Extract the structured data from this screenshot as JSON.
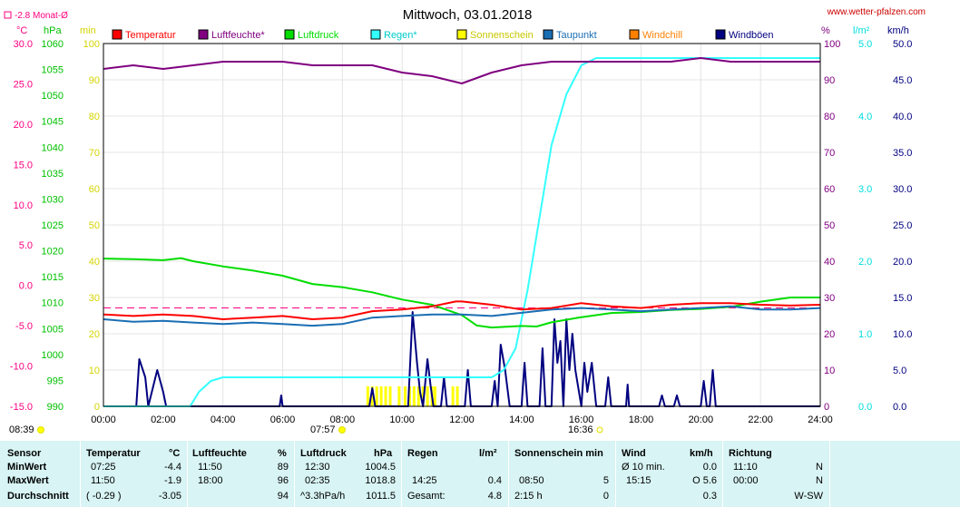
{
  "header": {
    "title": "Mittwoch, 03.01.2018",
    "website": "www.wetter-pfalzen.com",
    "monthly_avg": "-2.8 Monat-Ø"
  },
  "units": {
    "temp": "°C",
    "pressure": "hPa",
    "sun": "min",
    "humidity": "%",
    "rain": "l/m²",
    "wind": "km/h"
  },
  "markers": {
    "sunrise": "08:39",
    "solar_noon": "07:57",
    "sunset": "16:36"
  },
  "colors": {
    "temperatur": "#ff0000",
    "luftfeuchte": "#800080",
    "luftdruck": "#00dd00",
    "regen": "#33ffff",
    "sonnenschein": "#ffff00",
    "taupunkt": "#1a6eb4",
    "windchill": "#ff8000",
    "windboeen": "#000080",
    "temp_axis": "#ff0080",
    "pressure_axis": "#00c000",
    "sun_axis": "#d4d400",
    "humidity_axis": "#800080",
    "rain_axis": "#00dddd",
    "wind_axis": "#000080"
  },
  "chart_data": {
    "type": "line",
    "title": "Mittwoch, 03.01.2018",
    "x_ticks": [
      "00:00",
      "02:00",
      "04:00",
      "06:00",
      "08:00",
      "10:00",
      "12:00",
      "14:00",
      "16:00",
      "18:00",
      "20:00",
      "22:00",
      "24:00"
    ],
    "xlim": [
      0,
      24
    ],
    "axes": {
      "temp": {
        "ticks": [
          "30.0",
          "25.0",
          "20.0",
          "15.0",
          "10.0",
          "5.0",
          "0.0",
          "-5.0",
          "-10.0",
          "-15.0"
        ],
        "ylim": [
          -15,
          30
        ]
      },
      "pressure": {
        "ticks": [
          "1060",
          "1055",
          "1050",
          "1045",
          "1040",
          "1035",
          "1030",
          "1025",
          "1020",
          "1015",
          "1010",
          "1005",
          "1000",
          "995",
          "990"
        ],
        "ylim": [
          990,
          1060
        ]
      },
      "sun": {
        "ticks": [
          "100",
          "90",
          "80",
          "70",
          "60",
          "50",
          "40",
          "30",
          "20",
          "10",
          "0"
        ],
        "ylim": [
          0,
          100
        ]
      },
      "humidity": {
        "ticks": [
          "100",
          "90",
          "80",
          "70",
          "60",
          "50",
          "40",
          "30",
          "20",
          "10",
          "0"
        ],
        "ylim": [
          0,
          100
        ]
      },
      "rain": {
        "ticks": [
          "5.0",
          "4.0",
          "3.0",
          "2.0",
          "1.0",
          "0.0"
        ],
        "ylim": [
          0,
          5
        ]
      },
      "wind": {
        "ticks": [
          "50.0",
          "45.0",
          "40.0",
          "35.0",
          "30.0",
          "25.0",
          "20.0",
          "15.0",
          "10.0",
          "5.0",
          "0.0"
        ],
        "ylim": [
          0,
          50
        ]
      }
    },
    "month_avg_temp": -2.8,
    "series": [
      {
        "name": "Temperatur",
        "axis": "temp",
        "color": "#ff0000",
        "points": [
          [
            0,
            -3.6
          ],
          [
            1,
            -3.8
          ],
          [
            2,
            -3.6
          ],
          [
            3,
            -3.8
          ],
          [
            4,
            -4.2
          ],
          [
            5,
            -4.0
          ],
          [
            6,
            -3.8
          ],
          [
            7,
            -4.2
          ],
          [
            8,
            -4.0
          ],
          [
            9,
            -3.2
          ],
          [
            10,
            -3.0
          ],
          [
            11,
            -2.6
          ],
          [
            11.8,
            -2.0
          ],
          [
            12,
            -2.0
          ],
          [
            13,
            -2.4
          ],
          [
            14,
            -3.0
          ],
          [
            15,
            -2.8
          ],
          [
            16,
            -2.2
          ],
          [
            17,
            -2.6
          ],
          [
            18,
            -2.8
          ],
          [
            19,
            -2.4
          ],
          [
            20,
            -2.2
          ],
          [
            21,
            -2.2
          ],
          [
            22,
            -2.4
          ],
          [
            23,
            -2.5
          ],
          [
            24,
            -2.4
          ]
        ]
      },
      {
        "name": "Luftfeuchte",
        "axis": "humidity",
        "color": "#800080",
        "points": [
          [
            0,
            93
          ],
          [
            1,
            94
          ],
          [
            2,
            93
          ],
          [
            3,
            94
          ],
          [
            4,
            95
          ],
          [
            5,
            95
          ],
          [
            6,
            95
          ],
          [
            7,
            94
          ],
          [
            8,
            94
          ],
          [
            9,
            94
          ],
          [
            10,
            92
          ],
          [
            11,
            91
          ],
          [
            12,
            89
          ],
          [
            13,
            92
          ],
          [
            14,
            94
          ],
          [
            15,
            95
          ],
          [
            16,
            95
          ],
          [
            17,
            95
          ],
          [
            18,
            95
          ],
          [
            19,
            95
          ],
          [
            20,
            96
          ],
          [
            21,
            95
          ],
          [
            22,
            95
          ],
          [
            23,
            95
          ],
          [
            24,
            95
          ]
        ]
      },
      {
        "name": "Luftdruck",
        "axis": "pressure",
        "color": "#00dd00",
        "points": [
          [
            0,
            1018.5
          ],
          [
            1,
            1018.4
          ],
          [
            2,
            1018.2
          ],
          [
            2.6,
            1018.6
          ],
          [
            3,
            1018.0
          ],
          [
            4,
            1017.0
          ],
          [
            5,
            1016.2
          ],
          [
            6,
            1015.2
          ],
          [
            7,
            1013.6
          ],
          [
            8,
            1013.0
          ],
          [
            9,
            1012.0
          ],
          [
            10,
            1010.6
          ],
          [
            11,
            1009.6
          ],
          [
            12,
            1007.6
          ],
          [
            12.5,
            1005.6
          ],
          [
            13,
            1005.2
          ],
          [
            14,
            1005.5
          ],
          [
            14.5,
            1005.4
          ],
          [
            15,
            1006.2
          ],
          [
            16,
            1007.2
          ],
          [
            17,
            1008.0
          ],
          [
            18,
            1008.2
          ],
          [
            19,
            1008.6
          ],
          [
            20,
            1008.8
          ],
          [
            21,
            1009.2
          ],
          [
            22,
            1010.2
          ],
          [
            23,
            1011.0
          ],
          [
            24,
            1011.0
          ]
        ]
      },
      {
        "name": "Regen",
        "axis": "rain",
        "color": "#33ffff",
        "points": [
          [
            0,
            0
          ],
          [
            2.9,
            0
          ],
          [
            3.2,
            0.2
          ],
          [
            3.6,
            0.35
          ],
          [
            4,
            0.4
          ],
          [
            8,
            0.4
          ],
          [
            13,
            0.4
          ],
          [
            13.4,
            0.5
          ],
          [
            13.8,
            0.8
          ],
          [
            14.2,
            1.6
          ],
          [
            14.6,
            2.6
          ],
          [
            15,
            3.6
          ],
          [
            15.5,
            4.3
          ],
          [
            16,
            4.7
          ],
          [
            16.5,
            4.8
          ],
          [
            24,
            4.8
          ]
        ]
      },
      {
        "name": "Sonnenschein",
        "axis": "sun",
        "color": "#ffff00",
        "type": "bars",
        "points": [
          [
            8.85,
            5
          ],
          [
            9.0,
            5
          ],
          [
            9.15,
            5
          ],
          [
            9.3,
            5
          ],
          [
            9.45,
            5
          ],
          [
            9.6,
            5
          ],
          [
            9.9,
            5
          ],
          [
            10.1,
            5
          ],
          [
            10.25,
            5
          ],
          [
            10.4,
            5
          ],
          [
            10.55,
            5
          ],
          [
            10.7,
            5
          ],
          [
            10.85,
            5
          ],
          [
            11.0,
            5
          ],
          [
            11.1,
            5
          ],
          [
            11.7,
            5
          ],
          [
            11.85,
            5
          ]
        ]
      },
      {
        "name": "Taupunkt",
        "axis": "temp",
        "color": "#1a6eb4",
        "points": [
          [
            0,
            -4.2
          ],
          [
            1,
            -4.5
          ],
          [
            2,
            -4.4
          ],
          [
            3,
            -4.6
          ],
          [
            4,
            -4.8
          ],
          [
            5,
            -4.6
          ],
          [
            6,
            -4.8
          ],
          [
            7,
            -5.0
          ],
          [
            8,
            -4.8
          ],
          [
            9,
            -4.0
          ],
          [
            10,
            -3.8
          ],
          [
            11,
            -3.6
          ],
          [
            12,
            -3.6
          ],
          [
            13,
            -3.8
          ],
          [
            14,
            -3.4
          ],
          [
            15,
            -3.0
          ],
          [
            16,
            -2.8
          ],
          [
            17,
            -3.0
          ],
          [
            18,
            -3.2
          ],
          [
            19,
            -3.0
          ],
          [
            20,
            -2.8
          ],
          [
            21,
            -2.6
          ],
          [
            22,
            -3.0
          ],
          [
            23,
            -3.0
          ],
          [
            24,
            -2.8
          ]
        ]
      },
      {
        "name": "Windchill",
        "axis": "temp",
        "color": "#ff8000",
        "points": []
      },
      {
        "name": "Windböen",
        "axis": "wind",
        "color": "#000080",
        "points": [
          [
            0,
            0
          ],
          [
            1.1,
            0
          ],
          [
            1.2,
            6.5
          ],
          [
            1.4,
            4
          ],
          [
            1.5,
            0
          ],
          [
            1.8,
            5
          ],
          [
            2.0,
            2
          ],
          [
            2.1,
            0
          ],
          [
            5.9,
            0
          ],
          [
            5.95,
            1.5
          ],
          [
            6.0,
            0
          ],
          [
            8.9,
            0
          ],
          [
            9.0,
            2.5
          ],
          [
            9.1,
            0
          ],
          [
            10.2,
            0
          ],
          [
            10.35,
            13
          ],
          [
            10.5,
            6
          ],
          [
            10.6,
            2
          ],
          [
            10.7,
            0
          ],
          [
            10.85,
            6.5
          ],
          [
            10.95,
            3
          ],
          [
            11.05,
            0
          ],
          [
            11.3,
            0
          ],
          [
            11.4,
            4
          ],
          [
            11.5,
            0
          ],
          [
            12.1,
            0
          ],
          [
            12.2,
            5
          ],
          [
            12.3,
            0
          ],
          [
            13.0,
            0
          ],
          [
            13.1,
            3.5
          ],
          [
            13.2,
            0
          ],
          [
            13.3,
            8.5
          ],
          [
            13.45,
            5
          ],
          [
            13.6,
            0
          ],
          [
            14.0,
            0
          ],
          [
            14.1,
            6
          ],
          [
            14.2,
            0
          ],
          [
            14.6,
            0
          ],
          [
            14.7,
            8
          ],
          [
            14.8,
            0
          ],
          [
            15.0,
            0
          ],
          [
            15.1,
            12
          ],
          [
            15.2,
            6
          ],
          [
            15.3,
            9
          ],
          [
            15.4,
            0
          ],
          [
            15.5,
            12
          ],
          [
            15.6,
            5
          ],
          [
            15.7,
            10
          ],
          [
            15.8,
            5
          ],
          [
            16.0,
            0
          ],
          [
            16.1,
            6
          ],
          [
            16.2,
            2
          ],
          [
            16.35,
            6
          ],
          [
            16.5,
            0
          ],
          [
            16.8,
            0
          ],
          [
            16.9,
            4
          ],
          [
            17.0,
            0
          ],
          [
            17.5,
            0
          ],
          [
            17.55,
            3
          ],
          [
            17.6,
            0
          ],
          [
            18.6,
            0
          ],
          [
            18.7,
            1.5
          ],
          [
            18.8,
            0
          ],
          [
            19.1,
            0
          ],
          [
            19.2,
            1.5
          ],
          [
            19.3,
            0
          ],
          [
            20.0,
            0
          ],
          [
            20.1,
            3.5
          ],
          [
            20.2,
            0
          ],
          [
            20.3,
            0
          ],
          [
            20.4,
            5
          ],
          [
            20.5,
            0
          ],
          [
            24,
            0
          ]
        ]
      }
    ]
  },
  "legend": {
    "temperatur": "Temperatur",
    "luftfeuchte": "Luftfeuchte*",
    "luftdruck": "Luftdruck",
    "regen": "Regen*",
    "sonnenschein": "Sonnenschein",
    "taupunkt": "Taupunkt",
    "windchill": "Windchill",
    "windboeen": "Windböen"
  },
  "stats": {
    "row_labels": {
      "header": "Sensor",
      "min": "MinWert",
      "max": "MaxWert",
      "avg": "Durchschnitt"
    },
    "temperatur": {
      "label": "Temperatur",
      "unit": "°C",
      "min_time": "07:25",
      "min_val": "-4.4",
      "max_time": "11:50",
      "max_val": "-1.9",
      "avg_extra": "( -0.29 )",
      "avg_val": "-3.05"
    },
    "luftfeuchte": {
      "label": "Luftfeuchte",
      "unit": "%",
      "min_time": "11:50",
      "min_val": "89",
      "max_time": "18:00",
      "max_val": "96",
      "avg_val": "94"
    },
    "luftdruck": {
      "label": "Luftdruck",
      "unit": "hPa",
      "min_time": "12:30",
      "min_val": "1004.5",
      "max_time": "02:35",
      "max_val": "1018.8",
      "avg_extra": "^3.3hPa/h",
      "avg_val": "1011.5"
    },
    "regen": {
      "label": "Regen",
      "unit": "l/m²",
      "max_time": "14:25",
      "max_val": "0.4",
      "avg_label": "Gesamt:",
      "avg_val": "4.8"
    },
    "sonnenschein": {
      "label": "Sonnenschein min",
      "max_time": "08:50",
      "max_val": "5",
      "avg_time": "2:15 h",
      "avg_val": "0"
    },
    "wind": {
      "label": "Wind",
      "unit": "km/h",
      "min_time": "Ø 10 min.",
      "min_val": "0.0",
      "max_time": "15:15",
      "max_val": "O 5.6",
      "avg_val": "0.3"
    },
    "richtung": {
      "label": "Richtung",
      "min_time": "11:10",
      "min_val": "N",
      "max_time": "00:00",
      "max_val": "N",
      "avg_val": "W-SW"
    }
  }
}
